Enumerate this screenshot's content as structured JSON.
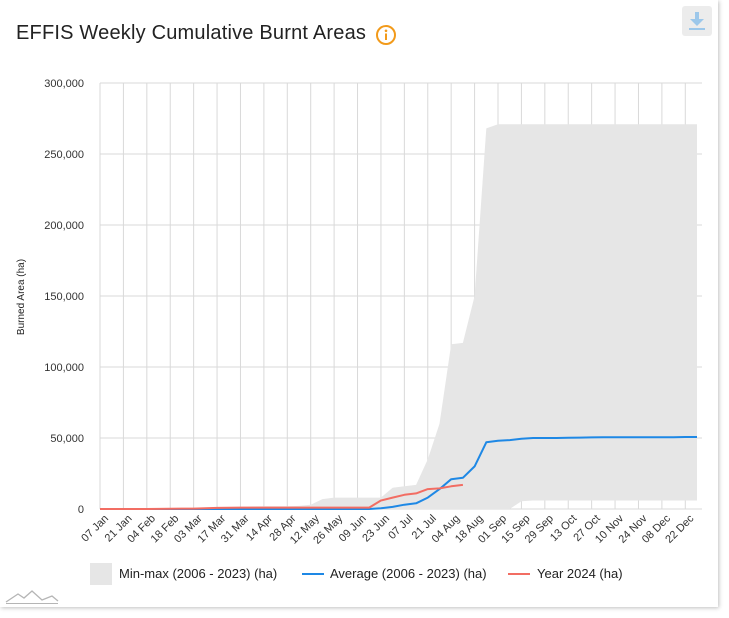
{
  "header": {
    "title": "EFFIS Weekly Cumulative Burnt Areas",
    "info_icon": "info-icon",
    "download_icon": "download-icon"
  },
  "colors": {
    "band": "#e6e6e6",
    "average": "#1e88e5",
    "year": "#f26d63",
    "grid": "#d9d9d9",
    "info": "#f29a1a"
  },
  "chart_data": {
    "type": "area",
    "title": "EFFIS Weekly Cumulative Burnt Areas",
    "ylabel": "Burned Area (ha)",
    "xlabel": "",
    "ylim": [
      0,
      300000
    ],
    "yticks": [
      0,
      50000,
      100000,
      150000,
      200000,
      250000,
      300000
    ],
    "ytick_labels": [
      "0",
      "50,000",
      "100,000",
      "150,000",
      "200,000",
      "250,000",
      "300,000"
    ],
    "x_labels": [
      "07 Jan",
      "21 Jan",
      "04 Feb",
      "18 Feb",
      "03 Mar",
      "17 Mar",
      "31 Mar",
      "14 Apr",
      "28 Apr",
      "12 May",
      "26 May",
      "09 Jun",
      "23 Jun",
      "07 Jul",
      "21 Jul",
      "04 Aug",
      "18 Aug",
      "01 Sep",
      "15 Sep",
      "29 Sep",
      "13 Oct",
      "27 Oct",
      "10 Nov",
      "24 Nov",
      "08 Dec",
      "22 Dec"
    ],
    "weeks": 52,
    "legend_position": "bottom",
    "series": [
      {
        "name": "Min-max (2006 - 2023) (ha)",
        "kind": "band",
        "min": [
          0,
          0,
          0,
          0,
          0,
          0,
          0,
          0,
          0,
          0,
          0,
          0,
          0,
          0,
          0,
          0,
          0,
          0,
          0,
          0,
          0,
          0,
          0,
          0,
          0,
          0,
          0,
          0,
          0,
          0,
          0,
          0,
          0,
          0,
          0,
          0,
          5500,
          6000,
          6000,
          6000,
          6000,
          6000,
          6000,
          6000,
          6000,
          6000,
          6000,
          6000,
          6000,
          6000,
          6000,
          6000
        ],
        "max": [
          0,
          100,
          200,
          300,
          300,
          500,
          600,
          700,
          800,
          900,
          1000,
          1200,
          1500,
          1800,
          2000,
          2000,
          2000,
          2200,
          3000,
          7000,
          8000,
          8000,
          8000,
          8000,
          8000,
          15000,
          16000,
          17000,
          35000,
          60000,
          116000,
          117000,
          150000,
          268000,
          271000,
          271000,
          271000,
          271000,
          271000,
          271000,
          271000,
          271000,
          271000,
          271000,
          271000,
          271000,
          271000,
          271000,
          271000,
          271000,
          271000,
          271000
        ]
      },
      {
        "name": "Average (2006 - 2023) (ha)",
        "kind": "line",
        "values": [
          0,
          0,
          0,
          0,
          0,
          0,
          0,
          0,
          0,
          0,
          0,
          0,
          0,
          0,
          0,
          0,
          0,
          0,
          0,
          0,
          0,
          0,
          0,
          0,
          500,
          1500,
          3000,
          4000,
          8000,
          14000,
          21000,
          22000,
          30000,
          47000,
          48000,
          48500,
          49500,
          50000,
          50000,
          50000,
          50200,
          50300,
          50400,
          50500,
          50500,
          50500,
          50500,
          50500,
          50500,
          50500,
          50700,
          50700
        ]
      },
      {
        "name": "Year 2024 (ha)",
        "kind": "line",
        "values": [
          0,
          0,
          0,
          0,
          0,
          100,
          200,
          300,
          300,
          500,
          800,
          900,
          1000,
          1000,
          1000,
          1000,
          1000,
          1000,
          1000,
          1000,
          1000,
          1000,
          1000,
          1000,
          6000,
          8000,
          10000,
          11000,
          14000,
          14500,
          16000,
          17000
        ]
      }
    ]
  }
}
